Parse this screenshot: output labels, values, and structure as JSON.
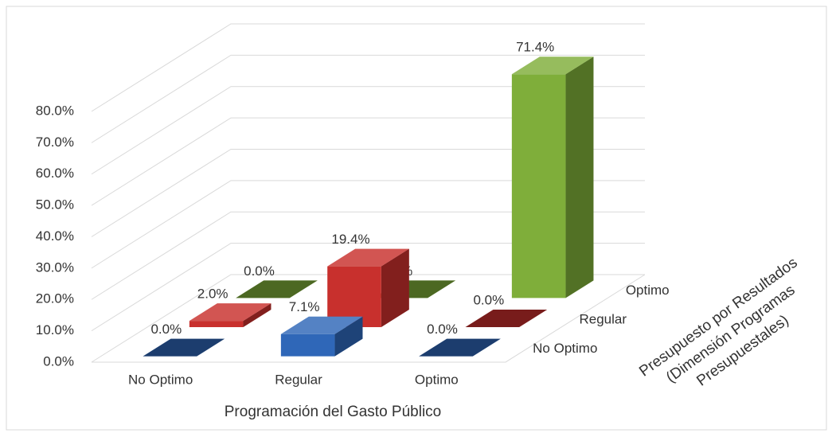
{
  "chart_data": {
    "type": "bar",
    "categories": [
      "No Optimo",
      "Regular",
      "Optimo"
    ],
    "x_label": "Programación del Gasto Público",
    "z_label": [
      "Presupuesto por Resultados",
      "(Dimensión Programas",
      "Presupuestales)"
    ],
    "series": [
      {
        "name": "No Optimo",
        "color": "#2f67b8",
        "values": [
          0,
          7.1,
          0
        ],
        "value_labels": [
          "0.0%",
          "7.1%",
          "0.0%"
        ]
      },
      {
        "name": "Regular",
        "color": "#c8302d",
        "values": [
          2.0,
          19.4,
          0
        ],
        "value_labels": [
          "2.0%",
          "19.4%",
          "0.0%"
        ]
      },
      {
        "name": "Optimo",
        "color": "#7fae3a",
        "values": [
          0,
          0,
          71.4
        ],
        "value_labels": [
          "0.0%",
          "0.0%",
          "71.4%"
        ]
      }
    ],
    "ylim": [
      0,
      80
    ],
    "yticks": [
      {
        "value": 0,
        "label": "0.0%"
      },
      {
        "value": 10,
        "label": "10.0%"
      },
      {
        "value": 20,
        "label": "20.0%"
      },
      {
        "value": 30,
        "label": "30.0%"
      },
      {
        "value": 40,
        "label": "40.0%"
      },
      {
        "value": 50,
        "label": "50.0%"
      },
      {
        "value": 60,
        "label": "60.0%"
      },
      {
        "value": 70,
        "label": "70.0%"
      },
      {
        "value": 80,
        "label": "80.0%"
      }
    ],
    "grid": true
  }
}
